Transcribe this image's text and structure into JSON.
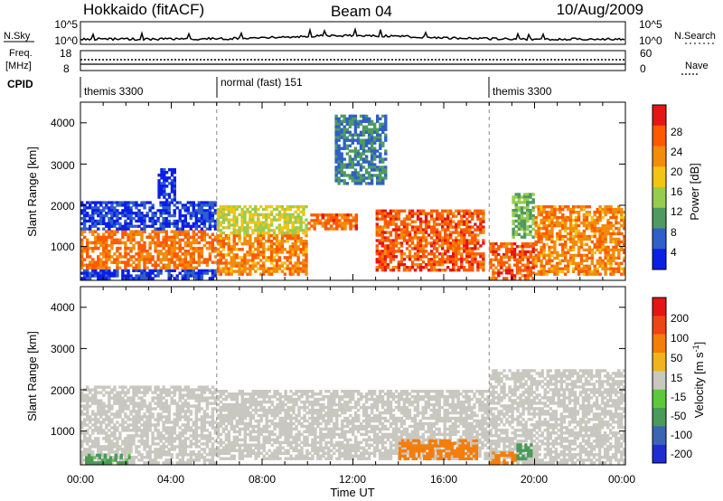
{
  "header": {
    "radar": "Hokkaido (fitACF)",
    "beam": "Beam 04",
    "date": "10/Aug/2009"
  },
  "noise_panel": {
    "left_label": "N.Sky",
    "right_label": "N.Search",
    "ticks": [
      "10^5",
      "10^0"
    ]
  },
  "freq_panel": {
    "left_label_1": "Freq.",
    "left_label_2": "[MHz]",
    "left_ticks": [
      "18",
      "8"
    ],
    "right_label": "Nave",
    "right_ticks": [
      "60",
      "0"
    ]
  },
  "cpid_panel": {
    "label": "CPID",
    "segments": [
      {
        "text": "themis 3300",
        "start_hour": 0
      },
      {
        "text": "normal (fast) 151",
        "start_hour": 6
      },
      {
        "text": "themis 3300",
        "start_hour": 18
      }
    ]
  },
  "power_panel": {
    "ylabel": "Slant Range [km]",
    "yticks": [
      "4000",
      "3000",
      "2000",
      "1000"
    ],
    "colorbar_label": "Power [dB]",
    "colorbar_ticks": [
      "28",
      "24",
      "20",
      "16",
      "12",
      "8",
      "4"
    ],
    "colors": [
      "#0a1ee6",
      "#2f5fc8",
      "#4f9a60",
      "#98cc50",
      "#f2c414",
      "#f28c0a",
      "#ff5a00",
      "#e61414"
    ]
  },
  "velocity_panel": {
    "ylabel": "Slant Range [km]",
    "yticks": [
      "4000",
      "3000",
      "2000",
      "1000"
    ],
    "colorbar_label": "Velocity [m s",
    "colorbar_label_sup": "-1",
    "colorbar_label_end": "]",
    "colorbar_ticks": [
      "200",
      "100",
      "50",
      "15",
      "-15",
      "-50",
      "-100",
      "-200"
    ],
    "colors": [
      "#1e2dd2",
      "#3c64b4",
      "#4a9a5a",
      "#5cc83c",
      "#c8c8c0",
      "#f0b41e",
      "#f57d0a",
      "#eb4614",
      "#e61414"
    ]
  },
  "x_axis": {
    "title": "Time UT",
    "ticks": [
      "00:00",
      "04:00",
      "08:00",
      "12:00",
      "16:00",
      "20:00",
      "00:00"
    ]
  },
  "chart_data": {
    "type": "heatmap",
    "title": "Hokkaido (fitACF)  Beam 04  10/Aug/2009",
    "xlabel": "Time UT",
    "ylabel": "Slant Range [km]",
    "xlim": [
      0,
      24
    ],
    "ylim": [
      180,
      4500
    ],
    "mode_changes_hour": [
      6,
      18
    ],
    "power": {
      "colorbar_label": "Power [dB]",
      "colorbar_ticks": [
        28,
        24,
        20,
        16,
        12,
        8,
        4
      ],
      "regions": [
        {
          "t_start": 0,
          "t_end": 6,
          "r_start": 200,
          "r_end": 450,
          "power_db": 5
        },
        {
          "t_start": 0,
          "t_end": 6,
          "r_start": 450,
          "r_end": 1400,
          "power_db": 26
        },
        {
          "t_start": 0,
          "t_end": 6,
          "r_start": 1400,
          "r_end": 2100,
          "power_db": 5
        },
        {
          "t_start": 3.4,
          "t_end": 4.2,
          "r_start": 2100,
          "r_end": 2900,
          "power_db": 5
        },
        {
          "t_start": 6,
          "t_end": 10,
          "r_start": 300,
          "r_end": 1300,
          "power_db": 25
        },
        {
          "t_start": 6,
          "t_end": 10,
          "r_start": 1300,
          "r_end": 2000,
          "power_db": 18
        },
        {
          "t_start": 10,
          "t_end": 12.2,
          "r_start": 1400,
          "r_end": 1800,
          "power_db": 27
        },
        {
          "t_start": 11.2,
          "t_end": 13.5,
          "r_start": 2500,
          "r_end": 4200,
          "power_db": 10
        },
        {
          "t_start": 13,
          "t_end": 17.8,
          "r_start": 400,
          "r_end": 1900,
          "power_db": 28
        },
        {
          "t_start": 18,
          "t_end": 20,
          "r_start": 200,
          "r_end": 1100,
          "power_db": 28
        },
        {
          "t_start": 19,
          "t_end": 20,
          "r_start": 1200,
          "r_end": 2300,
          "power_db": 14
        },
        {
          "t_start": 20,
          "t_end": 24,
          "r_start": 300,
          "r_end": 2000,
          "power_db": 25
        }
      ]
    },
    "velocity": {
      "colorbar_label": "Velocity [m s^-1]",
      "colorbar_ticks": [
        200,
        100,
        50,
        15,
        -15,
        -50,
        -100,
        -200
      ],
      "regions": [
        {
          "t_start": 0,
          "t_end": 6,
          "r_start": 200,
          "r_end": 2100,
          "velocity": 0
        },
        {
          "t_start": 0.2,
          "t_end": 2.2,
          "r_start": 200,
          "r_end": 450,
          "velocity": 40
        },
        {
          "t_start": 6,
          "t_end": 18,
          "r_start": 300,
          "r_end": 2000,
          "velocity": 0
        },
        {
          "t_start": 14,
          "t_end": 17.5,
          "r_start": 300,
          "r_end": 800,
          "velocity": -60
        },
        {
          "t_start": 18,
          "t_end": 24,
          "r_start": 200,
          "r_end": 2500,
          "velocity": 0
        },
        {
          "t_start": 18,
          "t_end": 19.2,
          "r_start": 200,
          "r_end": 500,
          "velocity": -60
        },
        {
          "t_start": 19.2,
          "t_end": 19.9,
          "r_start": 300,
          "r_end": 700,
          "velocity": 45
        }
      ]
    }
  }
}
